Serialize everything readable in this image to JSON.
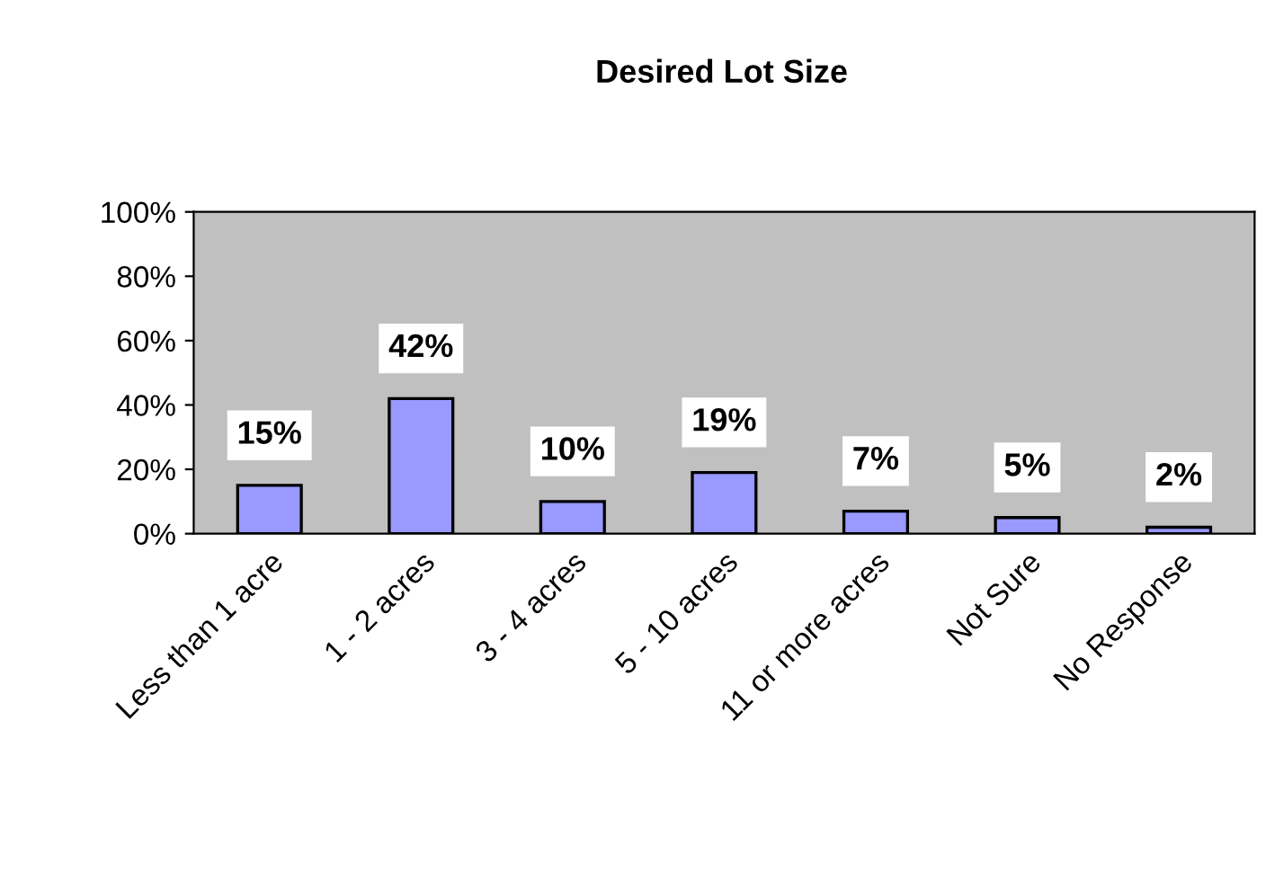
{
  "chart_data": {
    "type": "bar",
    "title": "Desired Lot Size",
    "categories": [
      "Less than 1 acre",
      "1 - 2 acres",
      "3 - 4 acres",
      "5 - 10 acres",
      "11 or more acres",
      "Not Sure",
      "No Response"
    ],
    "values": [
      15,
      42,
      10,
      19,
      7,
      5,
      2
    ],
    "value_labels": [
      "15%",
      "42%",
      "10%",
      "19%",
      "7%",
      "5%",
      "2%"
    ],
    "color": "#9999ff",
    "ylim": [
      0,
      100
    ],
    "yticks": [
      {
        "value": 0,
        "label": "0%"
      },
      {
        "value": 20,
        "label": "20%"
      },
      {
        "value": 40,
        "label": "40%"
      },
      {
        "value": 60,
        "label": "60%"
      },
      {
        "value": 80,
        "label": "80%"
      },
      {
        "value": 100,
        "label": "100%"
      }
    ],
    "grid": false,
    "legend": false
  }
}
